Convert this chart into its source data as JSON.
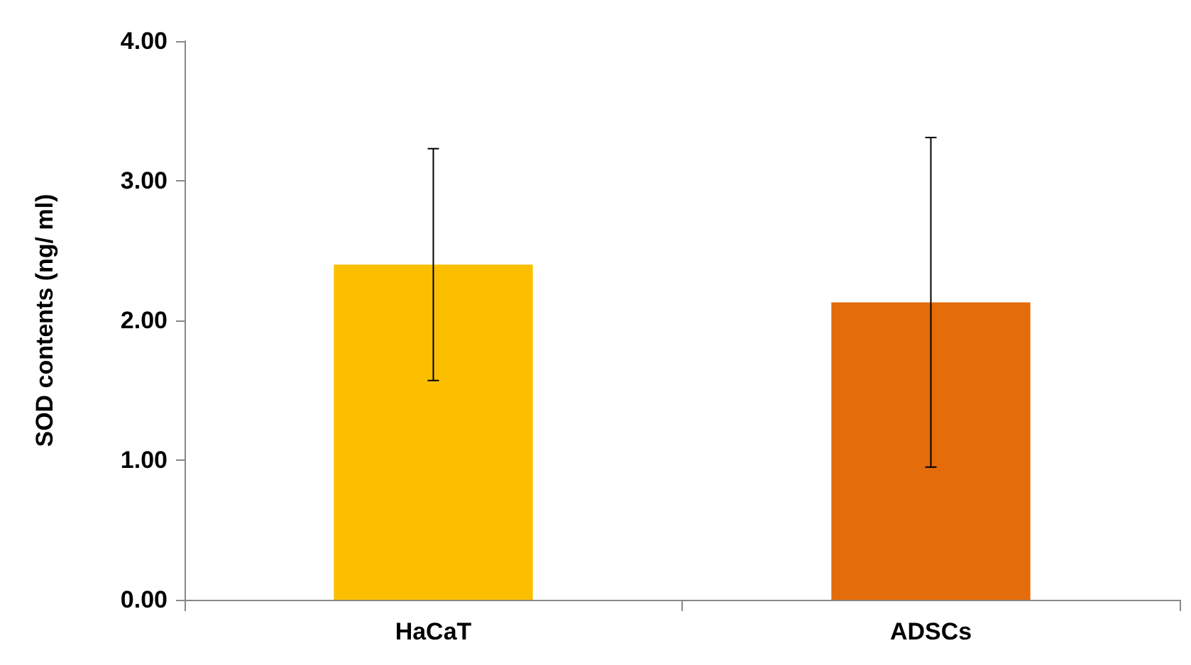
{
  "chart_data": {
    "type": "bar",
    "ylabel": "SOD contents (ng/ ml)",
    "categories": [
      "HaCaT",
      "ADSCs"
    ],
    "values": [
      2.4,
      2.13
    ],
    "colors": [
      "#fbbf00",
      "#e46c0a"
    ],
    "errors": [
      0.83,
      1.18
    ],
    "ylim": [
      0,
      4
    ],
    "yticks": [
      {
        "value": 0,
        "label": "0.00"
      },
      {
        "value": 1,
        "label": "1.00"
      },
      {
        "value": 2,
        "label": "2.00"
      },
      {
        "value": 3,
        "label": "3.00"
      },
      {
        "value": 4,
        "label": "4.00"
      }
    ],
    "grid": false
  }
}
